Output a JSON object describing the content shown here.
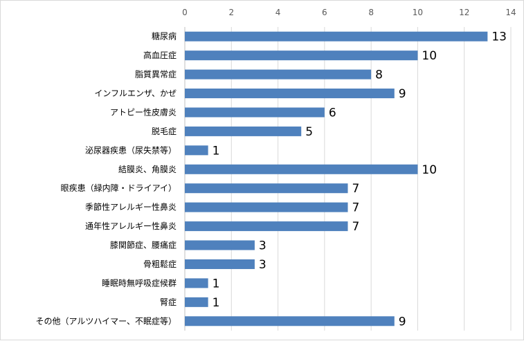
{
  "chart_data": {
    "type": "bar",
    "orientation": "horizontal",
    "categories": [
      "糖尿病",
      "高血圧症",
      "脂質異常症",
      "インフルエンザ、かぜ",
      "アトピー性皮膚炎",
      "脱毛症",
      "泌尿器疾患（尿失禁等）",
      "結膜炎、角膜炎",
      "眼疾患（緑内障・ドライアイ）",
      "季節性アレルギー性鼻炎",
      "通年性アレルギー性鼻炎",
      "膝関節症、腰痛症",
      "骨粗鬆症",
      "睡眠時無呼吸症候群",
      "腎症",
      "その他（アルツハイマー、不眠症等）"
    ],
    "values": [
      13,
      10,
      8,
      9,
      6,
      5,
      1,
      10,
      7,
      7,
      7,
      3,
      3,
      1,
      1,
      9
    ],
    "xlim": [
      0,
      14
    ],
    "x_ticks": [
      0,
      2,
      4,
      6,
      8,
      10,
      12,
      14
    ],
    "x_axis_position": "top",
    "grid": true,
    "data_labels": true,
    "bar_color": "#4f81bd",
    "gridline_color": "#d9d9d9"
  }
}
